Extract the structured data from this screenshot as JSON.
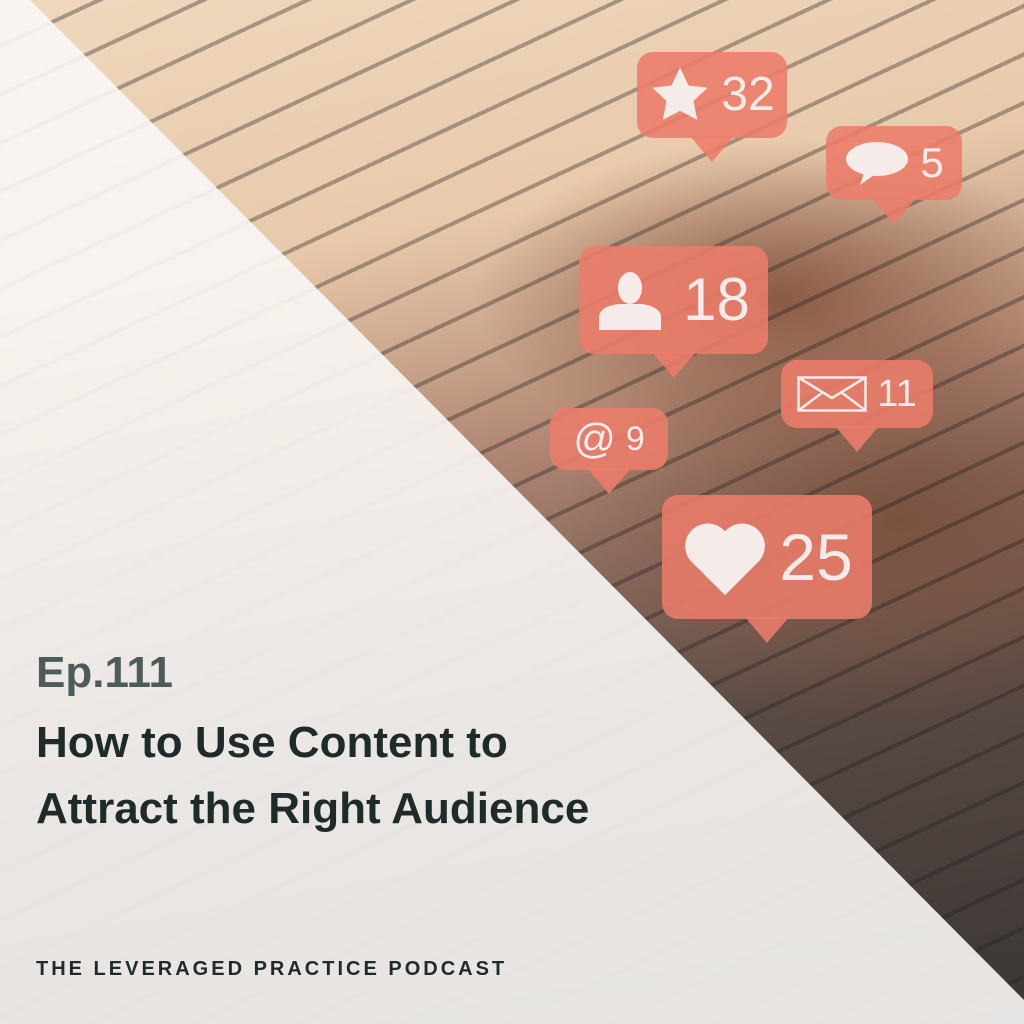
{
  "episode": "Ep.111",
  "title_line1": "How to Use Content to",
  "title_line2": "Attract the Right Audience",
  "podcast_name": "THE LEVERAGED PRACTICE PODCAST",
  "colors": {
    "bubble": "#ec7c6a",
    "episode_text": "#4d5b5b",
    "title_text": "#1f2b2b"
  },
  "bubbles": [
    {
      "icon": "star-icon",
      "count": "32"
    },
    {
      "icon": "speech-bubble-icon",
      "count": "5"
    },
    {
      "icon": "user-icon",
      "count": "18"
    },
    {
      "icon": "envelope-icon",
      "count": "11"
    },
    {
      "icon": "at-sign-icon",
      "count": "9"
    },
    {
      "icon": "heart-icon",
      "count": "25"
    }
  ]
}
